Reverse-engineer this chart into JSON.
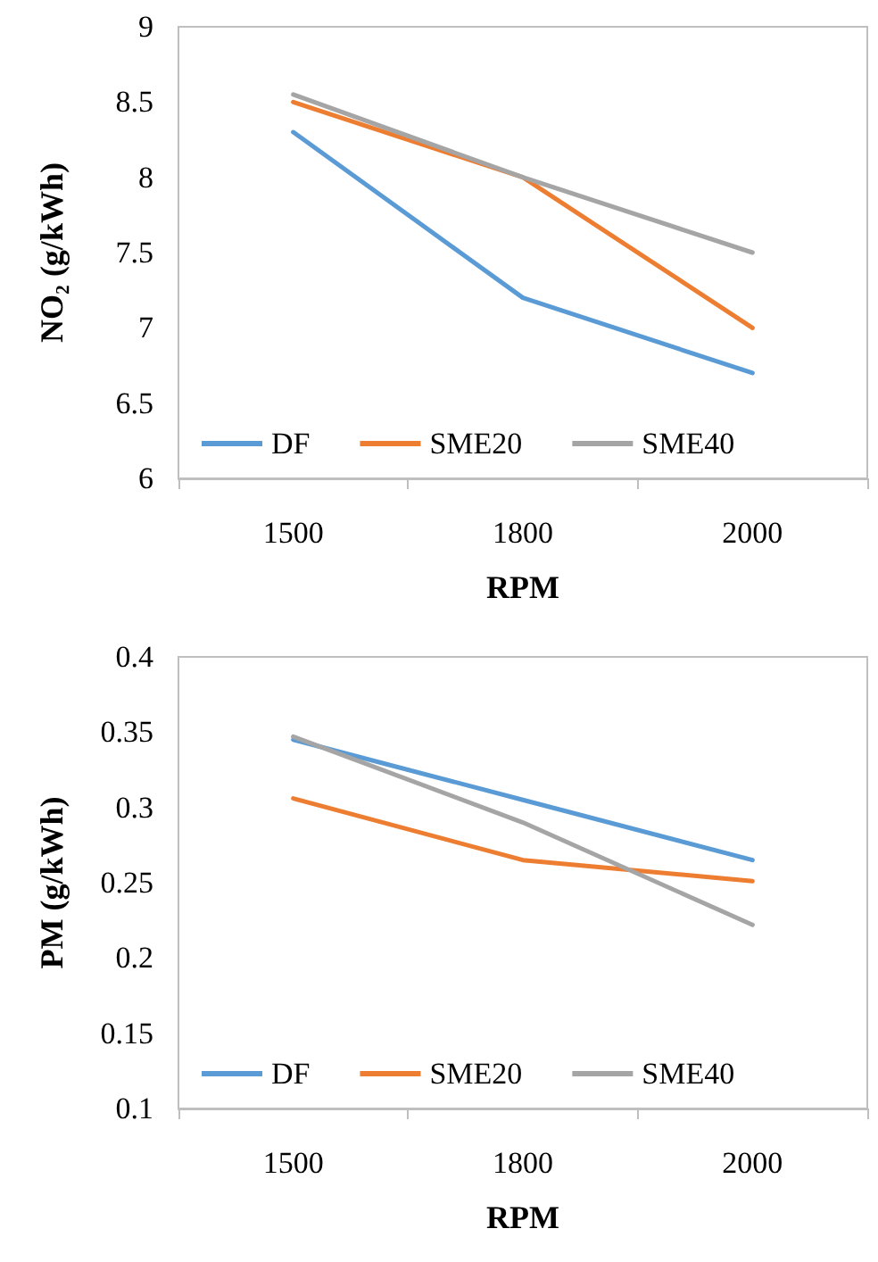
{
  "chart_data": [
    {
      "type": "line",
      "ylabel": "NO₂ (g/kWh)",
      "xlabel": "RPM",
      "categories": [
        "1500",
        "1800",
        "2000"
      ],
      "ylim": [
        6,
        9
      ],
      "yticks": [
        6,
        6.5,
        7,
        7.5,
        8,
        8.5,
        9
      ],
      "grid": false,
      "legend": "bottom",
      "marker": "none",
      "line_style": "solid",
      "series": [
        {
          "name": "DF",
          "color": "#5b9bd5",
          "values": [
            8.3,
            7.2,
            6.7
          ]
        },
        {
          "name": "SME20",
          "color": "#ed7d31",
          "values": [
            8.5,
            8.0,
            7.0
          ]
        },
        {
          "name": "SME40",
          "color": "#a5a5a5",
          "values": [
            8.55,
            8.0,
            7.5
          ]
        }
      ]
    },
    {
      "type": "line",
      "ylabel": "PM (g/kWh)",
      "xlabel": "RPM",
      "categories": [
        "1500",
        "1800",
        "2000"
      ],
      "ylim": [
        0.1,
        0.4
      ],
      "yticks": [
        0.1,
        0.15,
        0.2,
        0.25,
        0.3,
        0.35,
        0.4
      ],
      "grid": false,
      "legend": "bottom",
      "marker": "none",
      "line_style": "solid",
      "series": [
        {
          "name": "DF",
          "color": "#5b9bd5",
          "values": [
            0.345,
            0.305,
            0.265
          ]
        },
        {
          "name": "SME20",
          "color": "#ed7d31",
          "values": [
            0.306,
            0.265,
            0.251
          ]
        },
        {
          "name": "SME40",
          "color": "#a5a5a5",
          "values": [
            0.347,
            0.29,
            0.222
          ]
        }
      ]
    }
  ]
}
